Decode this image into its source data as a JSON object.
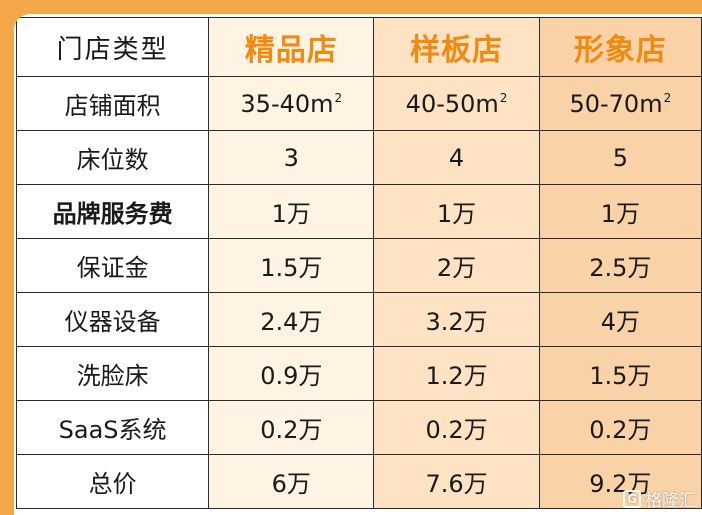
{
  "table": {
    "header": {
      "label": "门店类型",
      "col1": "精品店",
      "col2": "样板店",
      "col3": "形象店"
    },
    "rows": [
      {
        "label": "店铺面积",
        "v1": "35-40m",
        "u1": "2",
        "v2": "40-50m",
        "u2": "2",
        "v3": "50-70m",
        "u3": "2"
      },
      {
        "label": "床位数",
        "v1": "3",
        "v2": "4",
        "v3": "5"
      },
      {
        "label": "品牌服务费",
        "v1": "1万",
        "v2": "1万",
        "v3": "1万"
      },
      {
        "label": "保证金",
        "v1": "1.5万",
        "v2": "2万",
        "v3": "2.5万"
      },
      {
        "label": "仪器设备",
        "v1": "2.4万",
        "v2": "3.2万",
        "v3": "4万"
      },
      {
        "label": "洗脸床",
        "v1": "0.9万",
        "v2": "1.2万",
        "v3": "1.5万"
      },
      {
        "label": "SaaS系统",
        "v1": "0.2万",
        "v2": "0.2万",
        "v3": "0.2万"
      },
      {
        "label": "总价",
        "v1": "6万",
        "v2": "7.6万",
        "v3": "9.2万"
      }
    ]
  },
  "watermark": {
    "text": "格隆汇"
  },
  "colors": {
    "accent_orange": "#f08a10",
    "col1_bg": "#fff3e3",
    "col2_bg": "#fde2c4",
    "col3_bg": "#f9d2a8",
    "frame_bg": "#f5a84a"
  }
}
